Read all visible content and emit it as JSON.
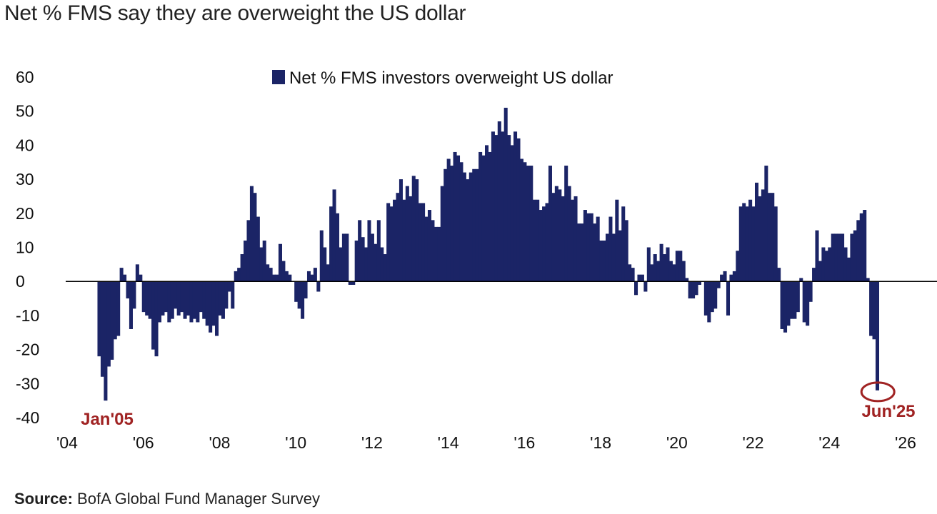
{
  "title": "Net % FMS say they are overweight the US dollar",
  "source": {
    "label": "Source:",
    "text": "BofA Global Fund Manager Survey"
  },
  "colors": {
    "bar": "#1b2466",
    "annotation": "#a02323",
    "axis": "#000000"
  },
  "chart_data": {
    "type": "bar",
    "title": "Net % FMS say they are overweight the US dollar",
    "legend": "Net % FMS investors overweight US dollar",
    "legend_position": "top-center",
    "ylim": [
      -40,
      60
    ],
    "xlim": [
      2004,
      2026
    ],
    "y_ticks": [
      "60",
      "50",
      "40",
      "30",
      "20",
      "10",
      "0",
      "-10",
      "-20",
      "-30",
      "-40"
    ],
    "x_ticks": [
      {
        "year": 2004,
        "label": "'04"
      },
      {
        "year": 2006,
        "label": "'06"
      },
      {
        "year": 2008,
        "label": "'08"
      },
      {
        "year": 2010,
        "label": "'10"
      },
      {
        "year": 2012,
        "label": "'12"
      },
      {
        "year": 2014,
        "label": "'14"
      },
      {
        "year": 2016,
        "label": "'16"
      },
      {
        "year": 2018,
        "label": "'18"
      },
      {
        "year": 2020,
        "label": "'20"
      },
      {
        "year": 2022,
        "label": "'22"
      },
      {
        "year": 2024,
        "label": "'24"
      },
      {
        "year": 2026,
        "label": "'26"
      }
    ],
    "start_month": "2004-11",
    "series": [
      {
        "name": "Net % FMS investors overweight US dollar",
        "values": [
          -22,
          -28,
          -35,
          -25,
          -23,
          -17,
          -16,
          4,
          2,
          -5,
          -14,
          -8,
          5,
          2,
          -9,
          -10,
          -11,
          -20,
          -22,
          -12,
          -10,
          -9,
          -12,
          -11,
          -8,
          -10,
          -9,
          -11,
          -10,
          -12,
          -11,
          -12,
          -9,
          -11,
          -13,
          -15,
          -13,
          -16,
          -10,
          -11,
          -8,
          -3,
          -8,
          3,
          4,
          8,
          12,
          18,
          28,
          26,
          19,
          10,
          12,
          5,
          4,
          2,
          2,
          11,
          6,
          3,
          2,
          0,
          -6,
          -8,
          -11,
          -5,
          3,
          2,
          4,
          -3,
          15,
          10,
          5,
          22,
          27,
          20,
          10,
          14,
          14,
          -1,
          -1,
          12,
          18,
          13,
          10,
          18,
          14,
          11,
          18,
          10,
          8,
          23,
          22,
          24,
          26,
          30,
          24,
          28,
          25,
          31,
          30,
          23,
          23,
          19,
          21,
          18,
          16,
          16,
          28,
          33,
          36,
          34,
          38,
          37,
          35,
          32,
          30,
          32,
          33,
          33,
          38,
          37,
          40,
          38,
          44,
          43,
          47,
          44,
          51,
          43,
          40,
          44,
          42,
          36,
          35,
          34,
          34,
          24,
          24,
          21,
          22,
          23,
          34,
          26,
          28,
          27,
          25,
          34,
          28,
          24,
          25,
          17,
          17,
          21,
          20,
          20,
          17,
          19,
          12,
          12,
          14,
          19,
          14,
          24,
          15,
          22,
          18,
          5,
          4,
          -4,
          2,
          2,
          -3,
          10,
          5,
          8,
          6,
          11,
          8,
          10,
          6,
          5,
          9,
          9,
          6,
          1,
          -5,
          -5,
          -4,
          -1,
          0,
          -10,
          -12,
          -9,
          -8,
          -2,
          2,
          3,
          -10,
          2,
          3,
          9,
          22,
          23,
          22,
          24,
          22,
          29,
          25,
          27,
          34,
          26,
          26,
          22,
          4,
          -14,
          -15,
          -13,
          -11,
          -11,
          -9,
          1,
          -12,
          -13,
          -6,
          4,
          15,
          6,
          10,
          9,
          10,
          14,
          14,
          14,
          14,
          10,
          7,
          14,
          15,
          18,
          20,
          21,
          1,
          -16,
          -17,
          -32
        ]
      }
    ],
    "annotations": [
      {
        "label": "Jan'05"
      },
      {
        "label": "Jun'25"
      }
    ]
  }
}
